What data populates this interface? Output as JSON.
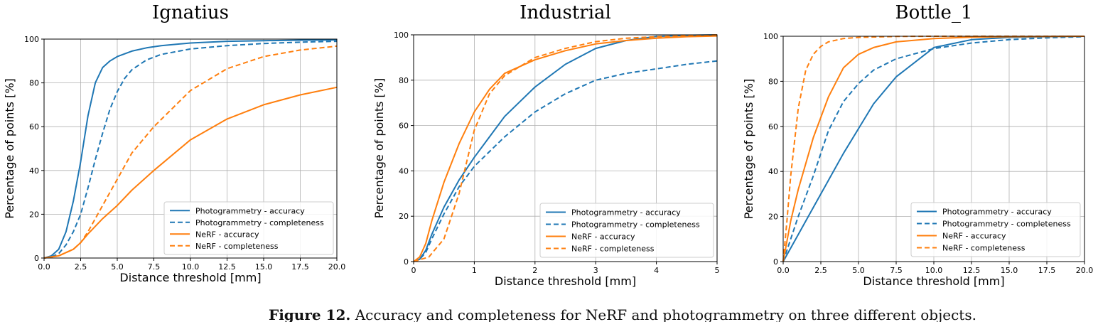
{
  "figure": {
    "caption_label": "Figure 12.",
    "caption_text": "Accuracy and completeness for NeRF and photogrammetry on three different objects."
  },
  "colors": {
    "blue": "#1f77b4",
    "orange": "#ff7f0e",
    "grid": "#b0b0b0"
  },
  "chart_data": [
    {
      "type": "line",
      "title": "Ignatius",
      "xlabel": "Distance threshold [mm]",
      "ylabel": "Percentage of points [%]",
      "xlim": [
        0,
        20
      ],
      "ylim": [
        0,
        100
      ],
      "xticks": [
        "0.0",
        "2.5",
        "5.0",
        "7.5",
        "10.0",
        "12.5",
        "15.0",
        "17.5",
        "20.0"
      ],
      "yticks": [
        "0",
        "20",
        "40",
        "60",
        "80",
        "100"
      ],
      "grid": true,
      "legend_position": "lower-right",
      "series": [
        {
          "name": "Photogrammetry - accuracy",
          "color": "blue",
          "dashed": false,
          "x": [
            0,
            0.5,
            1.0,
            1.5,
            2.0,
            2.5,
            3.0,
            3.5,
            4.0,
            4.5,
            5.0,
            6.0,
            7.0,
            8.0,
            10.0,
            12.5,
            15.0,
            17.5,
            20.0
          ],
          "y": [
            0,
            1,
            4,
            12,
            26,
            44,
            65,
            80,
            87,
            90,
            92,
            94.5,
            96,
            97,
            98.2,
            99,
            99.3,
            99.5,
            99.6
          ]
        },
        {
          "name": "Photogrammetry - completeness",
          "color": "blue",
          "dashed": true,
          "x": [
            0,
            0.5,
            1.0,
            1.5,
            2.0,
            2.5,
            3.0,
            3.5,
            4.0,
            4.5,
            5.0,
            5.5,
            6.0,
            7.0,
            8.0,
            10.0,
            12.5,
            15.0,
            17.5,
            20.0
          ],
          "y": [
            0,
            0.5,
            2,
            6,
            12,
            20,
            32,
            45,
            57,
            68,
            76,
            82,
            86,
            90.5,
            93,
            95.5,
            97,
            98,
            98.6,
            99
          ]
        },
        {
          "name": "NeRF - accuracy",
          "color": "orange",
          "dashed": false,
          "x": [
            0,
            1.0,
            2.0,
            2.5,
            3.0,
            4.0,
            5.0,
            6.0,
            7.5,
            10.0,
            12.5,
            15.0,
            17.5,
            20.0
          ],
          "y": [
            0,
            1,
            4,
            7,
            11,
            18,
            24,
            31,
            40,
            54,
            63.5,
            70,
            74.5,
            78
          ]
        },
        {
          "name": "NeRF - completeness",
          "color": "orange",
          "dashed": true,
          "x": [
            0,
            1.0,
            2.0,
            2.5,
            3.0,
            4.0,
            5.0,
            6.0,
            7.5,
            10.0,
            12.5,
            15.0,
            17.5,
            20.0
          ],
          "y": [
            0,
            1,
            4,
            7,
            12,
            24,
            36,
            48,
            60,
            76.5,
            86.5,
            92,
            95,
            96.8
          ]
        }
      ]
    },
    {
      "type": "line",
      "title": "Industrial",
      "xlabel": "Distance threshold [mm]",
      "ylabel": "Percentage of points [%]",
      "xlim": [
        0,
        5
      ],
      "ylim": [
        0,
        100
      ],
      "xticks": [
        "0",
        "1",
        "2",
        "3",
        "4",
        "5"
      ],
      "yticks": [
        "0",
        "20",
        "40",
        "60",
        "80",
        "100"
      ],
      "grid": true,
      "legend_position": "lower-right",
      "series": [
        {
          "name": "Photogrammetry - accuracy",
          "color": "blue",
          "dashed": false,
          "x": [
            0,
            0.1,
            0.2,
            0.3,
            0.5,
            0.75,
            1.0,
            1.25,
            1.5,
            2.0,
            2.5,
            3.0,
            3.5,
            4.0,
            4.5,
            5.0
          ],
          "y": [
            0,
            1,
            5,
            12,
            24,
            36,
            46,
            55,
            64,
            77,
            87,
            94,
            97.5,
            99.3,
            99.8,
            100
          ]
        },
        {
          "name": "Photogrammetry - completeness",
          "color": "blue",
          "dashed": true,
          "x": [
            0,
            0.1,
            0.2,
            0.3,
            0.5,
            0.75,
            1.0,
            1.5,
            2.0,
            2.5,
            3.0,
            3.5,
            4.0,
            4.5,
            5.0
          ],
          "y": [
            0,
            1,
            4,
            10,
            21,
            33,
            42,
            55,
            66,
            74,
            80,
            83,
            85,
            87,
            88.5
          ]
        },
        {
          "name": "NeRF - accuracy",
          "color": "orange",
          "dashed": false,
          "x": [
            0,
            0.1,
            0.2,
            0.3,
            0.5,
            0.75,
            1.0,
            1.25,
            1.5,
            2.0,
            2.5,
            3.0,
            3.5,
            4.0,
            4.5,
            5.0
          ],
          "y": [
            0,
            2,
            8,
            18,
            35,
            52,
            66,
            76,
            83,
            89,
            93,
            96,
            97.5,
            98.5,
            99.2,
            99.5
          ]
        },
        {
          "name": "NeRF - completeness",
          "color": "orange",
          "dashed": true,
          "x": [
            0,
            0.25,
            0.5,
            0.75,
            1.0,
            1.25,
            1.5,
            2.0,
            2.5,
            3.0,
            3.5,
            4.0,
            4.5,
            5.0
          ],
          "y": [
            0,
            2,
            10,
            30,
            58,
            74,
            82,
            90,
            94,
            97,
            98.5,
            99.2,
            99.6,
            100
          ]
        }
      ]
    },
    {
      "type": "line",
      "title": "Bottle_1",
      "xlabel": "Distance threshold [mm]",
      "ylabel": "Percentage of points [%]",
      "xlim": [
        0,
        20
      ],
      "ylim": [
        0,
        100
      ],
      "xticks": [
        "0.0",
        "2.5",
        "5.0",
        "7.5",
        "10.0",
        "12.5",
        "15.0",
        "17.5",
        "20.0"
      ],
      "yticks": [
        "0",
        "20",
        "40",
        "60",
        "80",
        "100"
      ],
      "grid": true,
      "legend_position": "lower-right",
      "series": [
        {
          "name": "Photogrammetry - accuracy",
          "color": "blue",
          "dashed": false,
          "x": [
            0,
            0.5,
            1.0,
            2.0,
            3.0,
            4.0,
            5.0,
            6.0,
            7.5,
            10.0,
            12.5,
            15.0,
            17.5,
            20.0
          ],
          "y": [
            0,
            6,
            12,
            24,
            36,
            48,
            59,
            70,
            82,
            95,
            98.5,
            99.5,
            99.8,
            100
          ]
        },
        {
          "name": "Photogrammetry - completeness",
          "color": "blue",
          "dashed": true,
          "x": [
            0,
            0.5,
            1.0,
            2.0,
            3.0,
            4.0,
            5.0,
            6.0,
            7.5,
            10.0,
            12.5,
            15.0,
            17.5,
            20.0
          ],
          "y": [
            0,
            10,
            20,
            38,
            58,
            71,
            79,
            85,
            90,
            94.5,
            97,
            98.5,
            99.3,
            99.8
          ]
        },
        {
          "name": "NeRF - accuracy",
          "color": "orange",
          "dashed": false,
          "x": [
            0,
            0.5,
            1.0,
            2.0,
            3.0,
            4.0,
            5.0,
            6.0,
            7.5,
            10.0,
            12.5,
            15.0,
            20.0
          ],
          "y": [
            0,
            18,
            32,
            55,
            73,
            86,
            92,
            95,
            97.5,
            99,
            99.6,
            99.8,
            100
          ]
        },
        {
          "name": "NeRF - completeness",
          "color": "orange",
          "dashed": true,
          "x": [
            0,
            0.25,
            0.5,
            1.0,
            1.5,
            2.0,
            2.5,
            3.0,
            4.0,
            5.0,
            7.5,
            10.0,
            20.0
          ],
          "y": [
            0,
            18,
            38,
            68,
            85,
            92,
            95.5,
            97.5,
            99,
            99.5,
            99.9,
            100,
            100
          ]
        }
      ]
    }
  ]
}
